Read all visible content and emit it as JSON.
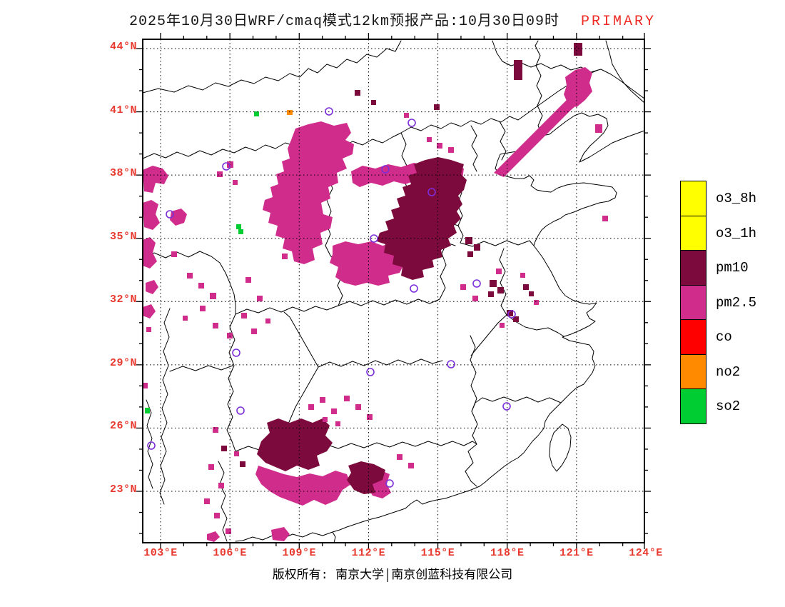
{
  "title": {
    "main": "2025年10月30日WRF/cmaq模式12km预报产品:10月30日09时",
    "tag": "PRIMARY"
  },
  "axes": {
    "x_ticks": [
      "103°E",
      "106°E",
      "109°E",
      "112°E",
      "115°E",
      "118°E",
      "121°E",
      "124°E"
    ],
    "y_ticks": [
      "44°N",
      "41°N",
      "38°N",
      "35°N",
      "32°N",
      "29°N",
      "26°N",
      "23°N"
    ]
  },
  "legend": {
    "items": [
      {
        "label": "o3_8h",
        "color": "#ffff00"
      },
      {
        "label": "o3_1h",
        "color": "#ffff00"
      },
      {
        "label": "pm10",
        "color": "#7c0a3c"
      },
      {
        "label": "pm2.5",
        "color": "#d02c8c"
      },
      {
        "label": "co",
        "color": "#ff0000"
      },
      {
        "label": "no2",
        "color": "#ff8a00"
      },
      {
        "label": "so2",
        "color": "#00cd32"
      }
    ]
  },
  "footer": {
    "copyright": "版权所有: 南京大学│南京创蓝科技有限公司"
  },
  "colors": {
    "axis_label": "#e8392f",
    "title_tag": "#ee2b24",
    "pm25": "#d02c8c",
    "pm10": "#7c0a3c",
    "co": "#ff0000",
    "no2": "#ff8a00",
    "so2": "#00cd32",
    "o3": "#ffff00",
    "station_marker": "#7c2fd9"
  }
}
